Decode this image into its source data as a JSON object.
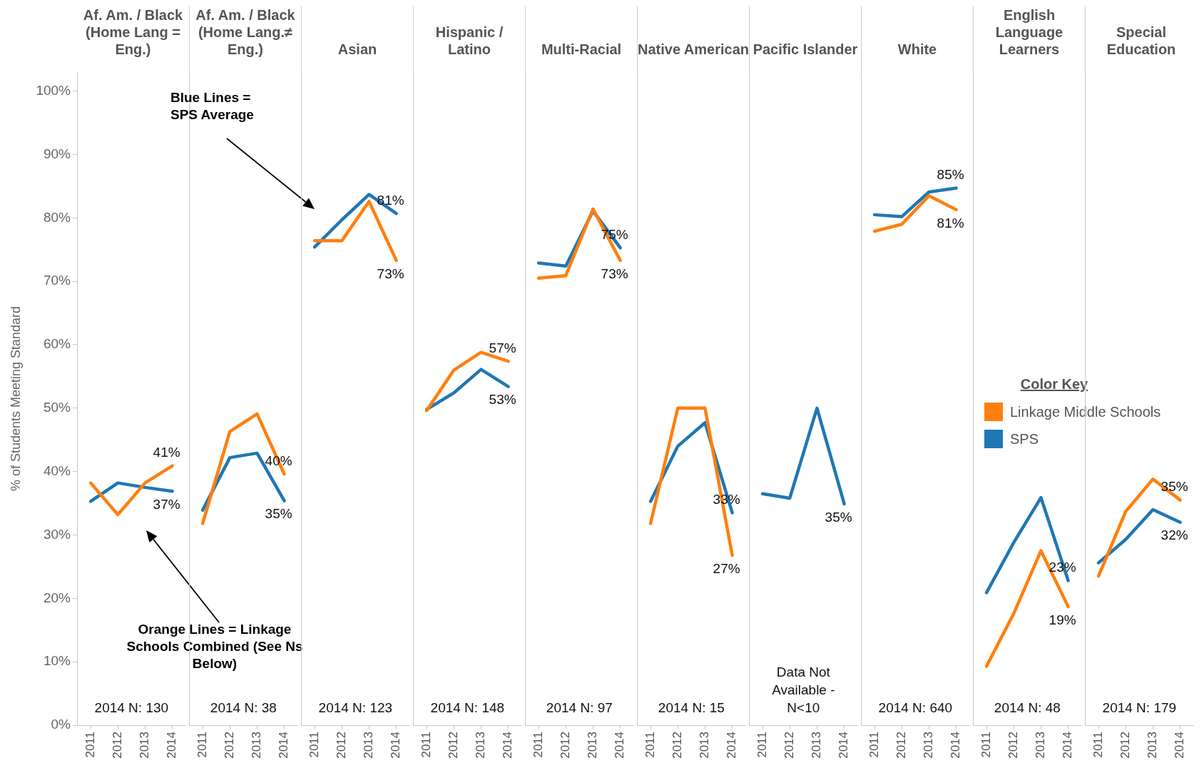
{
  "chart_data": [
    {
      "type": "line",
      "title": "Af. Am. / Black (Home Lang = Eng.)",
      "ylabel": "% of Students Meeting Standard",
      "categories": [
        "2011",
        "2012",
        "2013",
        "2014"
      ],
      "ylim": [
        0,
        103
      ],
      "yticks": [
        {
          "value": 0,
          "label": "0%"
        },
        {
          "value": 10,
          "label": "10%"
        },
        {
          "value": 20,
          "label": "20%"
        },
        {
          "value": 30,
          "label": "30%"
        },
        {
          "value": 40,
          "label": "40%"
        },
        {
          "value": 50,
          "label": "50%"
        },
        {
          "value": 60,
          "label": "60%"
        },
        {
          "value": 70,
          "label": "70%"
        },
        {
          "value": 80,
          "label": "80%"
        },
        {
          "value": 90,
          "label": "90%"
        },
        {
          "value": 100,
          "label": "100%"
        }
      ],
      "annotations": [
        "2014 N: 130",
        "Orange Lines = Linkage Schools Combined (See Ns Below)"
      ],
      "series": [
        {
          "color": "#ff7f0e",
          "values": [
            38.2,
            33.2,
            38.2,
            40.9
          ],
          "value_labels": [
            null,
            null,
            null,
            "41%"
          ]
        },
        {
          "color": "#1f77b4",
          "values": [
            35.3,
            38.2,
            37.5,
            36.9
          ],
          "value_labels": [
            null,
            null,
            null,
            "37%"
          ]
        }
      ]
    },
    {
      "type": "line",
      "title": "Af. Am. / Black (Home Lang.≠ Eng.)",
      "categories": [
        "2011",
        "2012",
        "2013",
        "2014"
      ],
      "ylim": [
        0,
        103
      ],
      "tick_labels": "x",
      "annotations": [
        "2014 N: 38",
        "Blue Lines = SPS Average"
      ],
      "series": [
        {
          "color": "#ff7f0e",
          "values": [
            31.8,
            46.3,
            49.1,
            39.6
          ],
          "value_labels": [
            null,
            null,
            null,
            "40%"
          ]
        },
        {
          "color": "#1f77b4",
          "values": [
            33.9,
            42.2,
            42.9,
            35.4
          ],
          "value_labels": [
            null,
            null,
            null,
            "35%"
          ]
        }
      ]
    },
    {
      "type": "line",
      "title": "Asian",
      "categories": [
        "2011",
        "2012",
        "2013",
        "2014"
      ],
      "ylim": [
        0,
        103
      ],
      "tick_labels": "x",
      "annotations": [
        "2014 N: 123"
      ],
      "series": [
        {
          "color": "#ff7f0e",
          "values": [
            76.4,
            76.4,
            82.6,
            73.3
          ],
          "value_labels": [
            null,
            null,
            null,
            "73%"
          ]
        },
        {
          "color": "#1f77b4",
          "values": [
            75.4,
            79.7,
            83.7,
            80.7
          ],
          "value_labels": [
            null,
            null,
            null,
            "81%"
          ]
        }
      ]
    },
    {
      "type": "line",
      "title": "Hispanic / Latino",
      "categories": [
        "2011",
        "2012",
        "2013",
        "2014"
      ],
      "ylim": [
        0,
        103
      ],
      "tick_labels": "x",
      "annotations": [
        "2014 N: 148"
      ],
      "series": [
        {
          "color": "#ff7f0e",
          "values": [
            49.6,
            56.0,
            58.8,
            57.4
          ],
          "value_labels": [
            null,
            null,
            null,
            "57%"
          ]
        },
        {
          "color": "#1f77b4",
          "values": [
            49.8,
            52.4,
            56.1,
            53.4
          ],
          "value_labels": [
            null,
            null,
            null,
            "53%"
          ]
        }
      ]
    },
    {
      "type": "line",
      "title": "Multi-Racial",
      "categories": [
        "2011",
        "2012",
        "2013",
        "2014"
      ],
      "ylim": [
        0,
        103
      ],
      "tick_labels": "x",
      "annotations": [
        "2014 N: 97"
      ],
      "series": [
        {
          "color": "#ff7f0e",
          "values": [
            70.5,
            70.9,
            81.4,
            73.3
          ],
          "value_labels": [
            null,
            null,
            null,
            "73%"
          ]
        },
        {
          "color": "#1f77b4",
          "values": [
            72.9,
            72.4,
            81.1,
            75.3
          ],
          "value_labels": [
            null,
            null,
            null,
            "75%"
          ]
        }
      ]
    },
    {
      "type": "line",
      "title": "Native American",
      "categories": [
        "2011",
        "2012",
        "2013",
        "2014"
      ],
      "ylim": [
        0,
        103
      ],
      "tick_labels": "x",
      "annotations": [
        "2014 N: 15"
      ],
      "series": [
        {
          "color": "#ff7f0e",
          "values": [
            31.8,
            50,
            50,
            26.8
          ],
          "value_labels": [
            null,
            null,
            null,
            "27%"
          ]
        },
        {
          "color": "#1f77b4",
          "values": [
            35.3,
            44.0,
            47.7,
            33.5
          ],
          "value_labels": [
            null,
            null,
            null,
            "33%"
          ]
        }
      ]
    },
    {
      "type": "line",
      "title": "Pacific Islander",
      "categories": [
        "2011",
        "2012",
        "2013",
        "2014"
      ],
      "ylim": [
        0,
        103
      ],
      "tick_labels": "x",
      "annotations": [
        "Data Not Available - N<10"
      ],
      "series": [
        {
          "color": "#1f77b4",
          "values": [
            36.5,
            35.8,
            50,
            34.9
          ],
          "value_labels": [
            null,
            null,
            null,
            "35%"
          ]
        }
      ]
    },
    {
      "type": "line",
      "title": "White",
      "categories": [
        "2011",
        "2012",
        "2013",
        "2014"
      ],
      "ylim": [
        0,
        103
      ],
      "tick_labels": "x",
      "annotations": [
        "2014 N: 640"
      ],
      "series": [
        {
          "color": "#ff7f0e",
          "values": [
            77.9,
            79.0,
            83.5,
            81.3
          ],
          "value_labels": [
            null,
            null,
            null,
            "81%"
          ]
        },
        {
          "color": "#1f77b4",
          "values": [
            80.5,
            80.2,
            84.1,
            84.7
          ],
          "value_labels": [
            null,
            null,
            null,
            "85%"
          ]
        }
      ]
    },
    {
      "type": "line",
      "title": "English Language Learners",
      "categories": [
        "2011",
        "2012",
        "2013",
        "2014"
      ],
      "ylim": [
        0,
        103
      ],
      "tick_labels": "x",
      "annotations": [
        "2014 N: 48"
      ],
      "legend": "right",
      "legend_title": "Color Key",
      "series": [
        {
          "name": "Linkage Middle Schools",
          "color": "#ff7f0e",
          "values": [
            9.3,
            17.6,
            27.5,
            18.7
          ],
          "value_labels": [
            null,
            null,
            null,
            "19%"
          ]
        },
        {
          "name": "SPS",
          "color": "#1f77b4",
          "values": [
            20.9,
            28.8,
            35.9,
            22.8
          ],
          "value_labels": [
            null,
            null,
            null,
            "23%"
          ]
        }
      ]
    },
    {
      "type": "line",
      "title": "Special Education",
      "categories": [
        "2011",
        "2012",
        "2013",
        "2014"
      ],
      "ylim": [
        0,
        103
      ],
      "tick_labels": "x",
      "annotations": [
        "2014 N: 179"
      ],
      "series": [
        {
          "color": "#ff7f0e",
          "values": [
            23.5,
            33.7,
            38.8,
            35.5
          ],
          "value_labels": [
            null,
            null,
            null,
            "35%"
          ]
        },
        {
          "color": "#1f77b4",
          "values": [
            25.6,
            29.3,
            34.0,
            32.0
          ],
          "value_labels": [
            null,
            null,
            null,
            "32%"
          ]
        }
      ]
    }
  ]
}
